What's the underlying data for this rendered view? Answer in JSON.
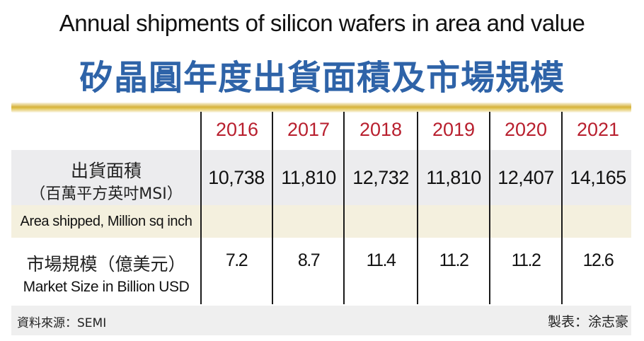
{
  "title_en": "Annual shipments of silicon wafers in area and value",
  "title_zh": "矽晶圓年度出貨面積及市場規模",
  "colors": {
    "title_zh": "#2e63a8",
    "year": "#b81f2e",
    "gold_rule": "#d6b23a",
    "band_area": "#ececee",
    "band_area_en": "#f4f0de"
  },
  "rows": {
    "area": {
      "label_zh_1": "出貨面積",
      "label_zh_2": "（百萬平方英吋MSI）",
      "label_en": "Area shipped, Million sq inch"
    },
    "market": {
      "label_zh": "市場規模（億美元）",
      "label_en": "Market Size in Billion USD"
    }
  },
  "chart_data": {
    "type": "table",
    "title": "Annual shipments of silicon wafers in area and value",
    "subtitle": "矽晶圓年度出貨面積及市場規模",
    "columns": [
      "2016",
      "2017",
      "2018",
      "2019",
      "2020",
      "2021"
    ],
    "series": [
      {
        "name": "出貨面積（百萬平方英吋MSI） / Area shipped, Million sq inch",
        "display": [
          "10,738",
          "11,810",
          "12,732",
          "11,810",
          "12,407",
          "14,165"
        ],
        "values": [
          10738,
          11810,
          12732,
          11810,
          12407,
          14165
        ]
      },
      {
        "name": "市場規模（億美元） / Market Size in Billion USD",
        "display": [
          "7.2",
          "8.7",
          "11.4",
          "11.2",
          "11.2",
          "12.6"
        ],
        "values": [
          7.2,
          8.7,
          11.4,
          11.2,
          11.2,
          12.6
        ]
      }
    ]
  },
  "footer": {
    "source": "資料來源：SEMI",
    "credit": "製表：涂志豪"
  }
}
